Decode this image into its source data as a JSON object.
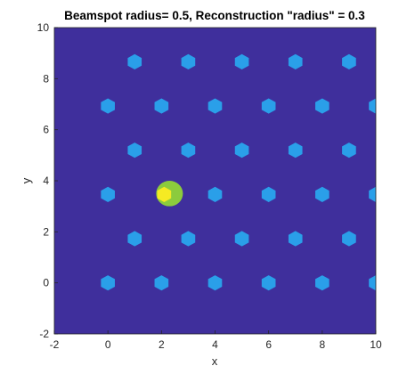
{
  "chart_data": {
    "type": "scatter",
    "title": "Beamspot radius= 0.5, Reconstruction \"radius\" = 0.3",
    "xlabel": "x",
    "ylabel": "y",
    "xlim": [
      -2,
      10
    ],
    "ylim": [
      -2,
      10
    ],
    "xticks": [
      "-2",
      "0",
      "2",
      "4",
      "6",
      "8",
      "10"
    ],
    "yticks": [
      "-2",
      "0",
      "2",
      "4",
      "6",
      "8",
      "10"
    ],
    "grid": false,
    "background_color": "#3F2F9C",
    "lattice_spacing": 2,
    "hexagon_radius": 0.3,
    "hexagon_color": "#2A9FE9",
    "lattice_points": [
      [
        0,
        0
      ],
      [
        2,
        0
      ],
      [
        4,
        0
      ],
      [
        6,
        0
      ],
      [
        8,
        0
      ],
      [
        10,
        0
      ],
      [
        1,
        1.732
      ],
      [
        3,
        1.732
      ],
      [
        5,
        1.732
      ],
      [
        7,
        1.732
      ],
      [
        9,
        1.732
      ],
      [
        0,
        3.464
      ],
      [
        4,
        3.464
      ],
      [
        6,
        3.464
      ],
      [
        8,
        3.464
      ],
      [
        10,
        3.464
      ],
      [
        1,
        5.196
      ],
      [
        3,
        5.196
      ],
      [
        5,
        5.196
      ],
      [
        7,
        5.196
      ],
      [
        9,
        5.196
      ],
      [
        0,
        6.928
      ],
      [
        2,
        6.928
      ],
      [
        4,
        6.928
      ],
      [
        6,
        6.928
      ],
      [
        8,
        6.928
      ],
      [
        10,
        6.928
      ],
      [
        1,
        8.66
      ],
      [
        3,
        8.66
      ],
      [
        5,
        8.66
      ],
      [
        7,
        8.66
      ],
      [
        9,
        8.66
      ]
    ],
    "beamspot": {
      "x": 2.3,
      "y": 3.5,
      "radius": 0.5,
      "color": "#8CCB3D"
    },
    "reconstruction": {
      "x": 2.1,
      "y": 3.464,
      "radius": 0.3,
      "color": "#F5EA23"
    }
  }
}
